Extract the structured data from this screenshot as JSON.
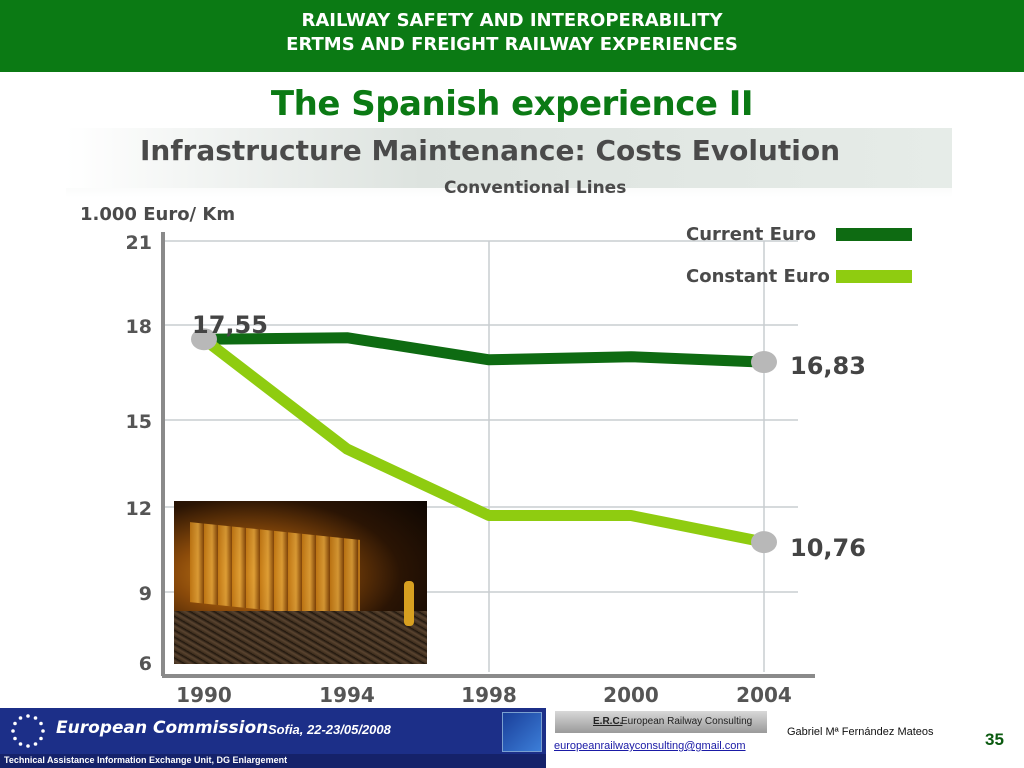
{
  "header": {
    "line1": "RAILWAY SAFETY AND INTEROPERABILITY",
    "line2": "ERTMS AND FREIGHT RAILWAY EXPERIENCES"
  },
  "slide_title": "The Spanish experience II",
  "chart_data": {
    "type": "line",
    "title": "Infrastructure Maintenance: Costs Evolution",
    "subtitle": "Conventional Lines",
    "ylabel": "1.000 Euro/ Km",
    "xlabel": "",
    "categories": [
      "1990",
      "1994",
      "1998",
      "2000",
      "2004"
    ],
    "y_ticks": [
      "21",
      "18",
      "15",
      "12",
      "9",
      "6"
    ],
    "ylim": [
      6,
      21
    ],
    "grid": true,
    "legend_position": "top-right",
    "series": [
      {
        "name": "Current Euro",
        "color": "#0e6b12",
        "values": [
          17.55,
          17.6,
          16.9,
          17.0,
          16.83
        ]
      },
      {
        "name": "Constant Euro",
        "color": "#8fcc10",
        "values": [
          17.55,
          14.0,
          11.7,
          11.7,
          10.76
        ]
      }
    ],
    "annotations": [
      {
        "text": "17,55",
        "x": "1990",
        "y": 17.55
      },
      {
        "text": "16,83",
        "x": "2004",
        "y": 16.83
      },
      {
        "text": "10,76",
        "x": "2004",
        "y": 10.76
      }
    ]
  },
  "footer": {
    "organization": "European Commission",
    "place_date": "Sofia, 22-23/05/2008",
    "unit": "Technical Assistance Information Exchange Unit, DG Enlargement",
    "erc_abbr": "E.R.C.",
    "erc_name": "European Railway Consulting",
    "email": "europeanrailwayconsulting@gmail.com",
    "author": "Gabriel Mª Fernández Mateos",
    "page_number": "35"
  }
}
